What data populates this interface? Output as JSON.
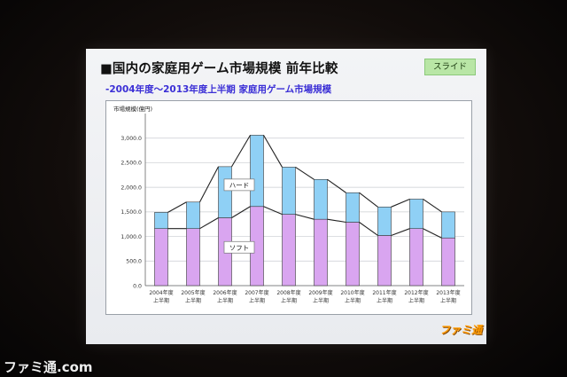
{
  "slide": {
    "title": "■国内の家庭用ゲーム市場規模 前年比較",
    "badge": "スライド",
    "subtitle": "-2004年度～2013年度上半期 家庭用ゲーム市場規模",
    "logo": "ファミ通"
  },
  "watermark": "ファミ通.com",
  "colors": {
    "soft": "#d9a5f0",
    "hard": "#8fd0f5",
    "bar_outline": "#3a3a3a",
    "line": "#222222"
  },
  "chart_data": {
    "type": "bar",
    "stacked": true,
    "ylabel": "市場規模(億円)",
    "ylim": [
      0,
      3500
    ],
    "yticks": [
      0,
      500,
      1000,
      1500,
      2000,
      2500,
      3000
    ],
    "ytick_labels": [
      "0.0",
      "500.0",
      "1,000.0",
      "1,500.0",
      "2,000.0",
      "2,500.0",
      "3,000.0"
    ],
    "grid": true,
    "categories": [
      [
        "2004年度",
        "上半期"
      ],
      [
        "2005年度",
        "上半期"
      ],
      [
        "2006年度",
        "上半期"
      ],
      [
        "2007年度",
        "上半期"
      ],
      [
        "2008年度",
        "上半期"
      ],
      [
        "2009年度",
        "上半期"
      ],
      [
        "2010年度",
        "上半期"
      ],
      [
        "2011年度",
        "上半期"
      ],
      [
        "2012年度",
        "上半期"
      ],
      [
        "2013年度",
        "上半期"
      ]
    ],
    "series": [
      {
        "name": "ソフト",
        "values": [
          1160,
          1160,
          1380,
          1610,
          1450,
          1350,
          1290,
          1020,
          1160,
          970
        ]
      },
      {
        "name": "ハード",
        "values": [
          330,
          540,
          1040,
          1450,
          960,
          810,
          600,
          580,
          600,
          530
        ]
      }
    ],
    "annotations": [
      "ハード",
      "ソフト"
    ]
  }
}
